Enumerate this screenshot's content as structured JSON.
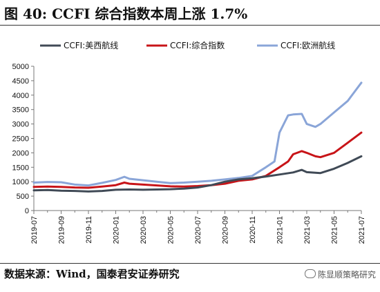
{
  "header": {
    "title": "图 40:  CCFI 综合指数本周上涨 1.7%"
  },
  "footer": {
    "source": "数据来源：Wind，国泰君安证券研究",
    "watermark": "陈显顺策略研究"
  },
  "chart_data": {
    "type": "line",
    "title": "",
    "xlabel": "",
    "ylabel": "",
    "ylim": [
      0,
      5000
    ],
    "yticks": [
      0,
      500,
      1000,
      1500,
      2000,
      2500,
      3000,
      3500,
      4000,
      4500,
      5000
    ],
    "xticks": [
      "2019-07",
      "2019-09",
      "2019-11",
      "2020-01",
      "2020-03",
      "2020-05",
      "2020-07",
      "2020-09",
      "2020-11",
      "2021-01",
      "2021-03",
      "2021-05",
      "2021-07"
    ],
    "xrange": [
      "2019-07",
      "2021-07"
    ],
    "grid": false,
    "legend_position": "top",
    "series": [
      {
        "name": "CCFI:美西航线",
        "color": "#404a56",
        "points": [
          [
            "2019-07",
            700
          ],
          [
            "2019-08",
            710
          ],
          [
            "2019-09",
            690
          ],
          [
            "2019-10",
            680
          ],
          [
            "2019-11",
            660
          ],
          [
            "2019-12",
            680
          ],
          [
            "2020-01",
            720
          ],
          [
            "2020-02",
            730
          ],
          [
            "2020-03",
            720
          ],
          [
            "2020-04",
            730
          ],
          [
            "2020-05",
            740
          ],
          [
            "2020-06",
            760
          ],
          [
            "2020-07",
            800
          ],
          [
            "2020-08",
            880
          ],
          [
            "2020-09",
            1000
          ],
          [
            "2020-10",
            1080
          ],
          [
            "2020-11",
            1120
          ],
          [
            "2020-12",
            1180
          ],
          [
            "2021-01",
            1250
          ],
          [
            "2021-02",
            1320
          ],
          [
            "2021-02-20",
            1410
          ],
          [
            "2021-03",
            1330
          ],
          [
            "2021-04",
            1300
          ],
          [
            "2021-05",
            1450
          ],
          [
            "2021-06",
            1650
          ],
          [
            "2021-07",
            1880
          ]
        ]
      },
      {
        "name": "CCFI:综合指数",
        "color": "#c81418",
        "points": [
          [
            "2019-07",
            820
          ],
          [
            "2019-08",
            830
          ],
          [
            "2019-09",
            820
          ],
          [
            "2019-10",
            800
          ],
          [
            "2019-11",
            790
          ],
          [
            "2019-12",
            830
          ],
          [
            "2020-01",
            880
          ],
          [
            "2020-01-20",
            970
          ],
          [
            "2020-02",
            930
          ],
          [
            "2020-03",
            900
          ],
          [
            "2020-04",
            870
          ],
          [
            "2020-05",
            840
          ],
          [
            "2020-06",
            830
          ],
          [
            "2020-07",
            850
          ],
          [
            "2020-08",
            880
          ],
          [
            "2020-09",
            930
          ],
          [
            "2020-10",
            1030
          ],
          [
            "2020-11",
            1080
          ],
          [
            "2020-12",
            1200
          ],
          [
            "2021-01",
            1500
          ],
          [
            "2021-01-20",
            1700
          ],
          [
            "2021-02",
            1950
          ],
          [
            "2021-02-20",
            2060
          ],
          [
            "2021-03",
            2000
          ],
          [
            "2021-03-20",
            1880
          ],
          [
            "2021-04",
            1850
          ],
          [
            "2021-05",
            2000
          ],
          [
            "2021-06",
            2350
          ],
          [
            "2021-07",
            2700
          ]
        ]
      },
      {
        "name": "CCFI:欧洲航线",
        "color": "#8aa5d8",
        "points": [
          [
            "2019-07",
            970
          ],
          [
            "2019-08",
            990
          ],
          [
            "2019-09",
            980
          ],
          [
            "2019-10",
            900
          ],
          [
            "2019-11",
            870
          ],
          [
            "2019-12",
            960
          ],
          [
            "2020-01",
            1060
          ],
          [
            "2020-01-20",
            1170
          ],
          [
            "2020-02",
            1100
          ],
          [
            "2020-03",
            1050
          ],
          [
            "2020-04",
            1000
          ],
          [
            "2020-05",
            950
          ],
          [
            "2020-06",
            970
          ],
          [
            "2020-07",
            1000
          ],
          [
            "2020-08",
            1030
          ],
          [
            "2020-09",
            1080
          ],
          [
            "2020-10",
            1130
          ],
          [
            "2020-11",
            1200
          ],
          [
            "2020-12",
            1500
          ],
          [
            "2020-12-20",
            1700
          ],
          [
            "2021-01",
            2700
          ],
          [
            "2021-01-20",
            3300
          ],
          [
            "2021-02",
            3330
          ],
          [
            "2021-02-20",
            3350
          ],
          [
            "2021-03",
            3000
          ],
          [
            "2021-03-20",
            2900
          ],
          [
            "2021-04",
            3000
          ],
          [
            "2021-05",
            3400
          ],
          [
            "2021-06",
            3800
          ],
          [
            "2021-07",
            4430
          ]
        ]
      }
    ]
  }
}
